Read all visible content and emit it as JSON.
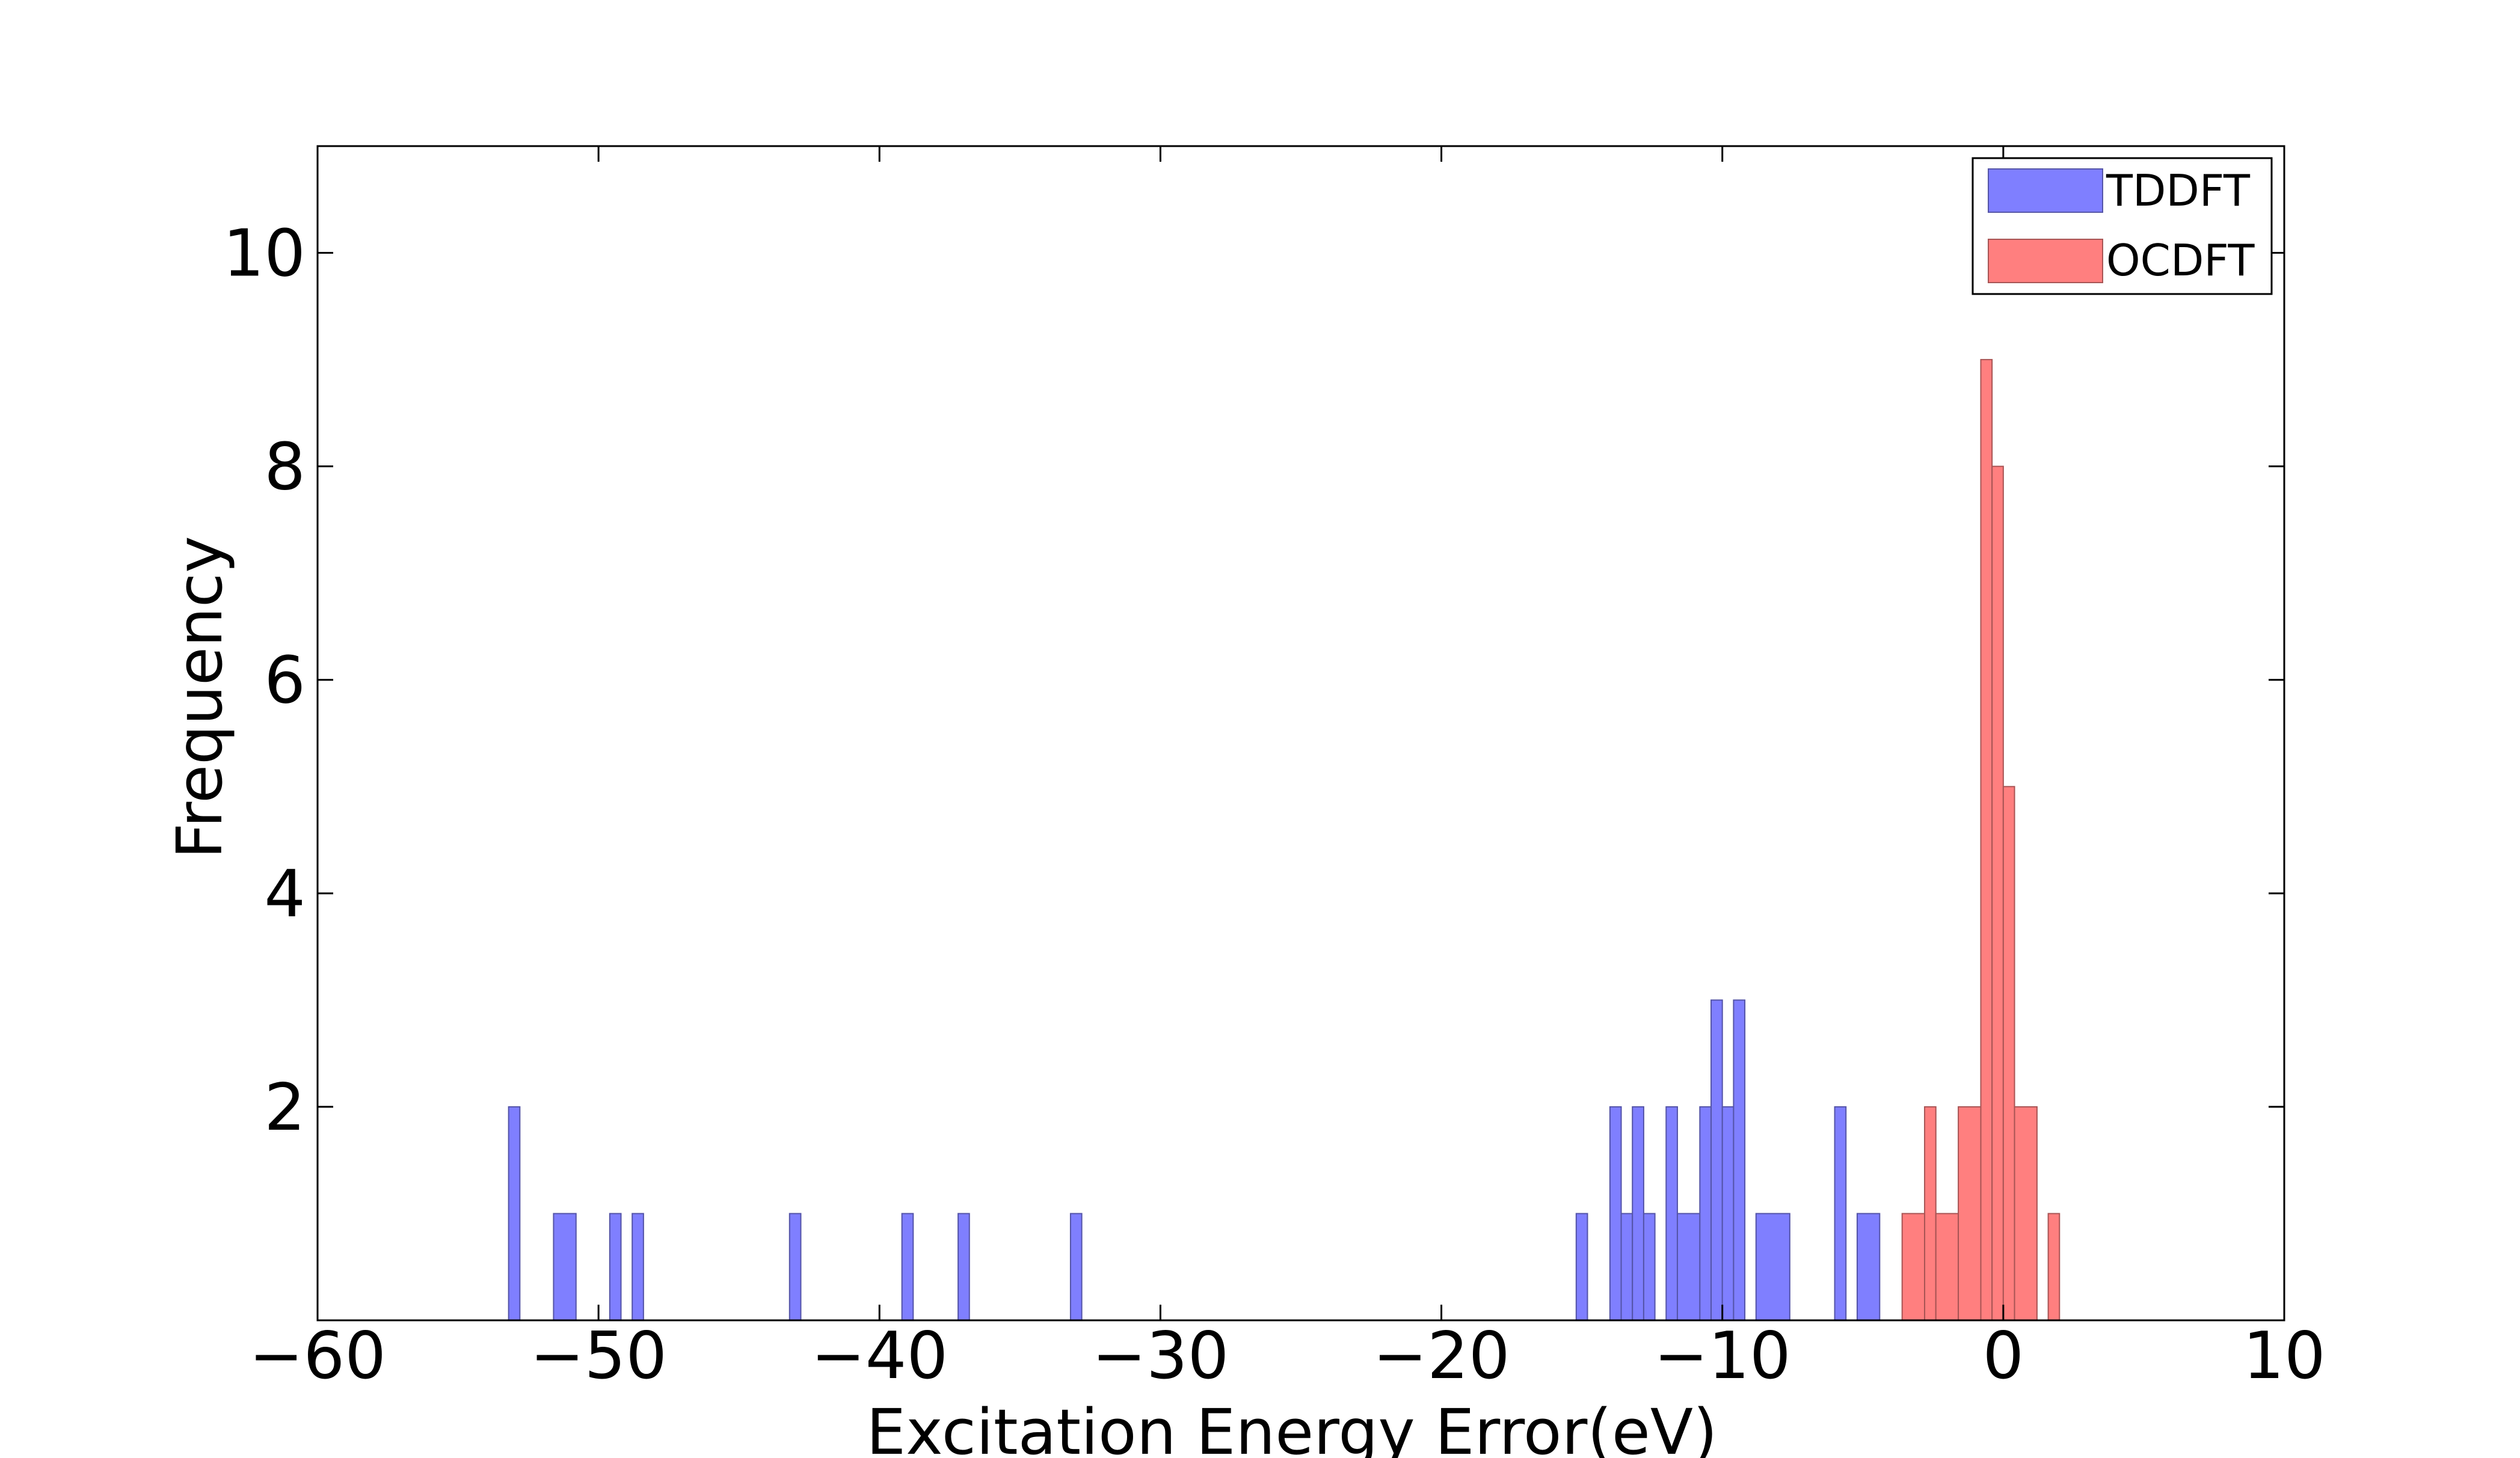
{
  "chart_data": {
    "type": "histogram",
    "title": "",
    "xlabel": "Excitation Energy Error(eV)",
    "ylabel": "Frequency",
    "xlim": [
      -60,
      10
    ],
    "ylim": [
      0,
      11
    ],
    "bin_width": 0.4,
    "xticks": [
      -60,
      -50,
      -40,
      -30,
      -20,
      -10,
      0,
      10
    ],
    "xtick_labels": [
      "−60",
      "−50",
      "−40",
      "−30",
      "−20",
      "−10",
      "0",
      "10"
    ],
    "yticks": [
      2,
      4,
      6,
      8,
      10
    ],
    "ytick_labels": [
      "2",
      "4",
      "6",
      "8",
      "10"
    ],
    "grid": false,
    "legend_position": "top-right",
    "series": [
      {
        "name": "TDDFT",
        "color": "#7f7fff",
        "bins": [
          {
            "x0": -53.2,
            "x1": -52.8,
            "count": 2
          },
          {
            "x0": -51.6,
            "x1": -50.8,
            "count": 1
          },
          {
            "x0": -49.6,
            "x1": -49.2,
            "count": 1
          },
          {
            "x0": -48.8,
            "x1": -48.4,
            "count": 1
          },
          {
            "x0": -43.2,
            "x1": -42.8,
            "count": 1
          },
          {
            "x0": -39.2,
            "x1": -38.8,
            "count": 1
          },
          {
            "x0": -37.2,
            "x1": -36.8,
            "count": 1
          },
          {
            "x0": -33.2,
            "x1": -32.8,
            "count": 1
          },
          {
            "x0": -15.2,
            "x1": -14.8,
            "count": 1
          },
          {
            "x0": -14.0,
            "x1": -13.6,
            "count": 2
          },
          {
            "x0": -13.6,
            "x1": -13.2,
            "count": 1
          },
          {
            "x0": -13.2,
            "x1": -12.8,
            "count": 2
          },
          {
            "x0": -12.8,
            "x1": -12.4,
            "count": 1
          },
          {
            "x0": -12.0,
            "x1": -11.6,
            "count": 2
          },
          {
            "x0": -11.6,
            "x1": -10.8,
            "count": 1
          },
          {
            "x0": -10.8,
            "x1": -10.4,
            "count": 2
          },
          {
            "x0": -10.4,
            "x1": -10.0,
            "count": 3
          },
          {
            "x0": -10.0,
            "x1": -9.6,
            "count": 2
          },
          {
            "x0": -9.6,
            "x1": -9.2,
            "count": 3
          },
          {
            "x0": -8.8,
            "x1": -7.6,
            "count": 1
          },
          {
            "x0": -6.0,
            "x1": -5.6,
            "count": 2
          },
          {
            "x0": -5.2,
            "x1": -4.4,
            "count": 1
          }
        ]
      },
      {
        "name": "OCDFT",
        "color": "#ff7f7f",
        "bins": [
          {
            "x0": -3.6,
            "x1": -2.8,
            "count": 1
          },
          {
            "x0": -2.8,
            "x1": -2.4,
            "count": 2
          },
          {
            "x0": -2.4,
            "x1": -1.6,
            "count": 1
          },
          {
            "x0": -1.6,
            "x1": -0.8,
            "count": 2
          },
          {
            "x0": -0.8,
            "x1": -0.4,
            "count": 9
          },
          {
            "x0": -0.4,
            "x1": 0.0,
            "count": 8
          },
          {
            "x0": 0.0,
            "x1": 0.4,
            "count": 5
          },
          {
            "x0": 0.4,
            "x1": 1.2,
            "count": 2
          },
          {
            "x0": 1.6,
            "x1": 2.0,
            "count": 1
          }
        ]
      }
    ]
  }
}
